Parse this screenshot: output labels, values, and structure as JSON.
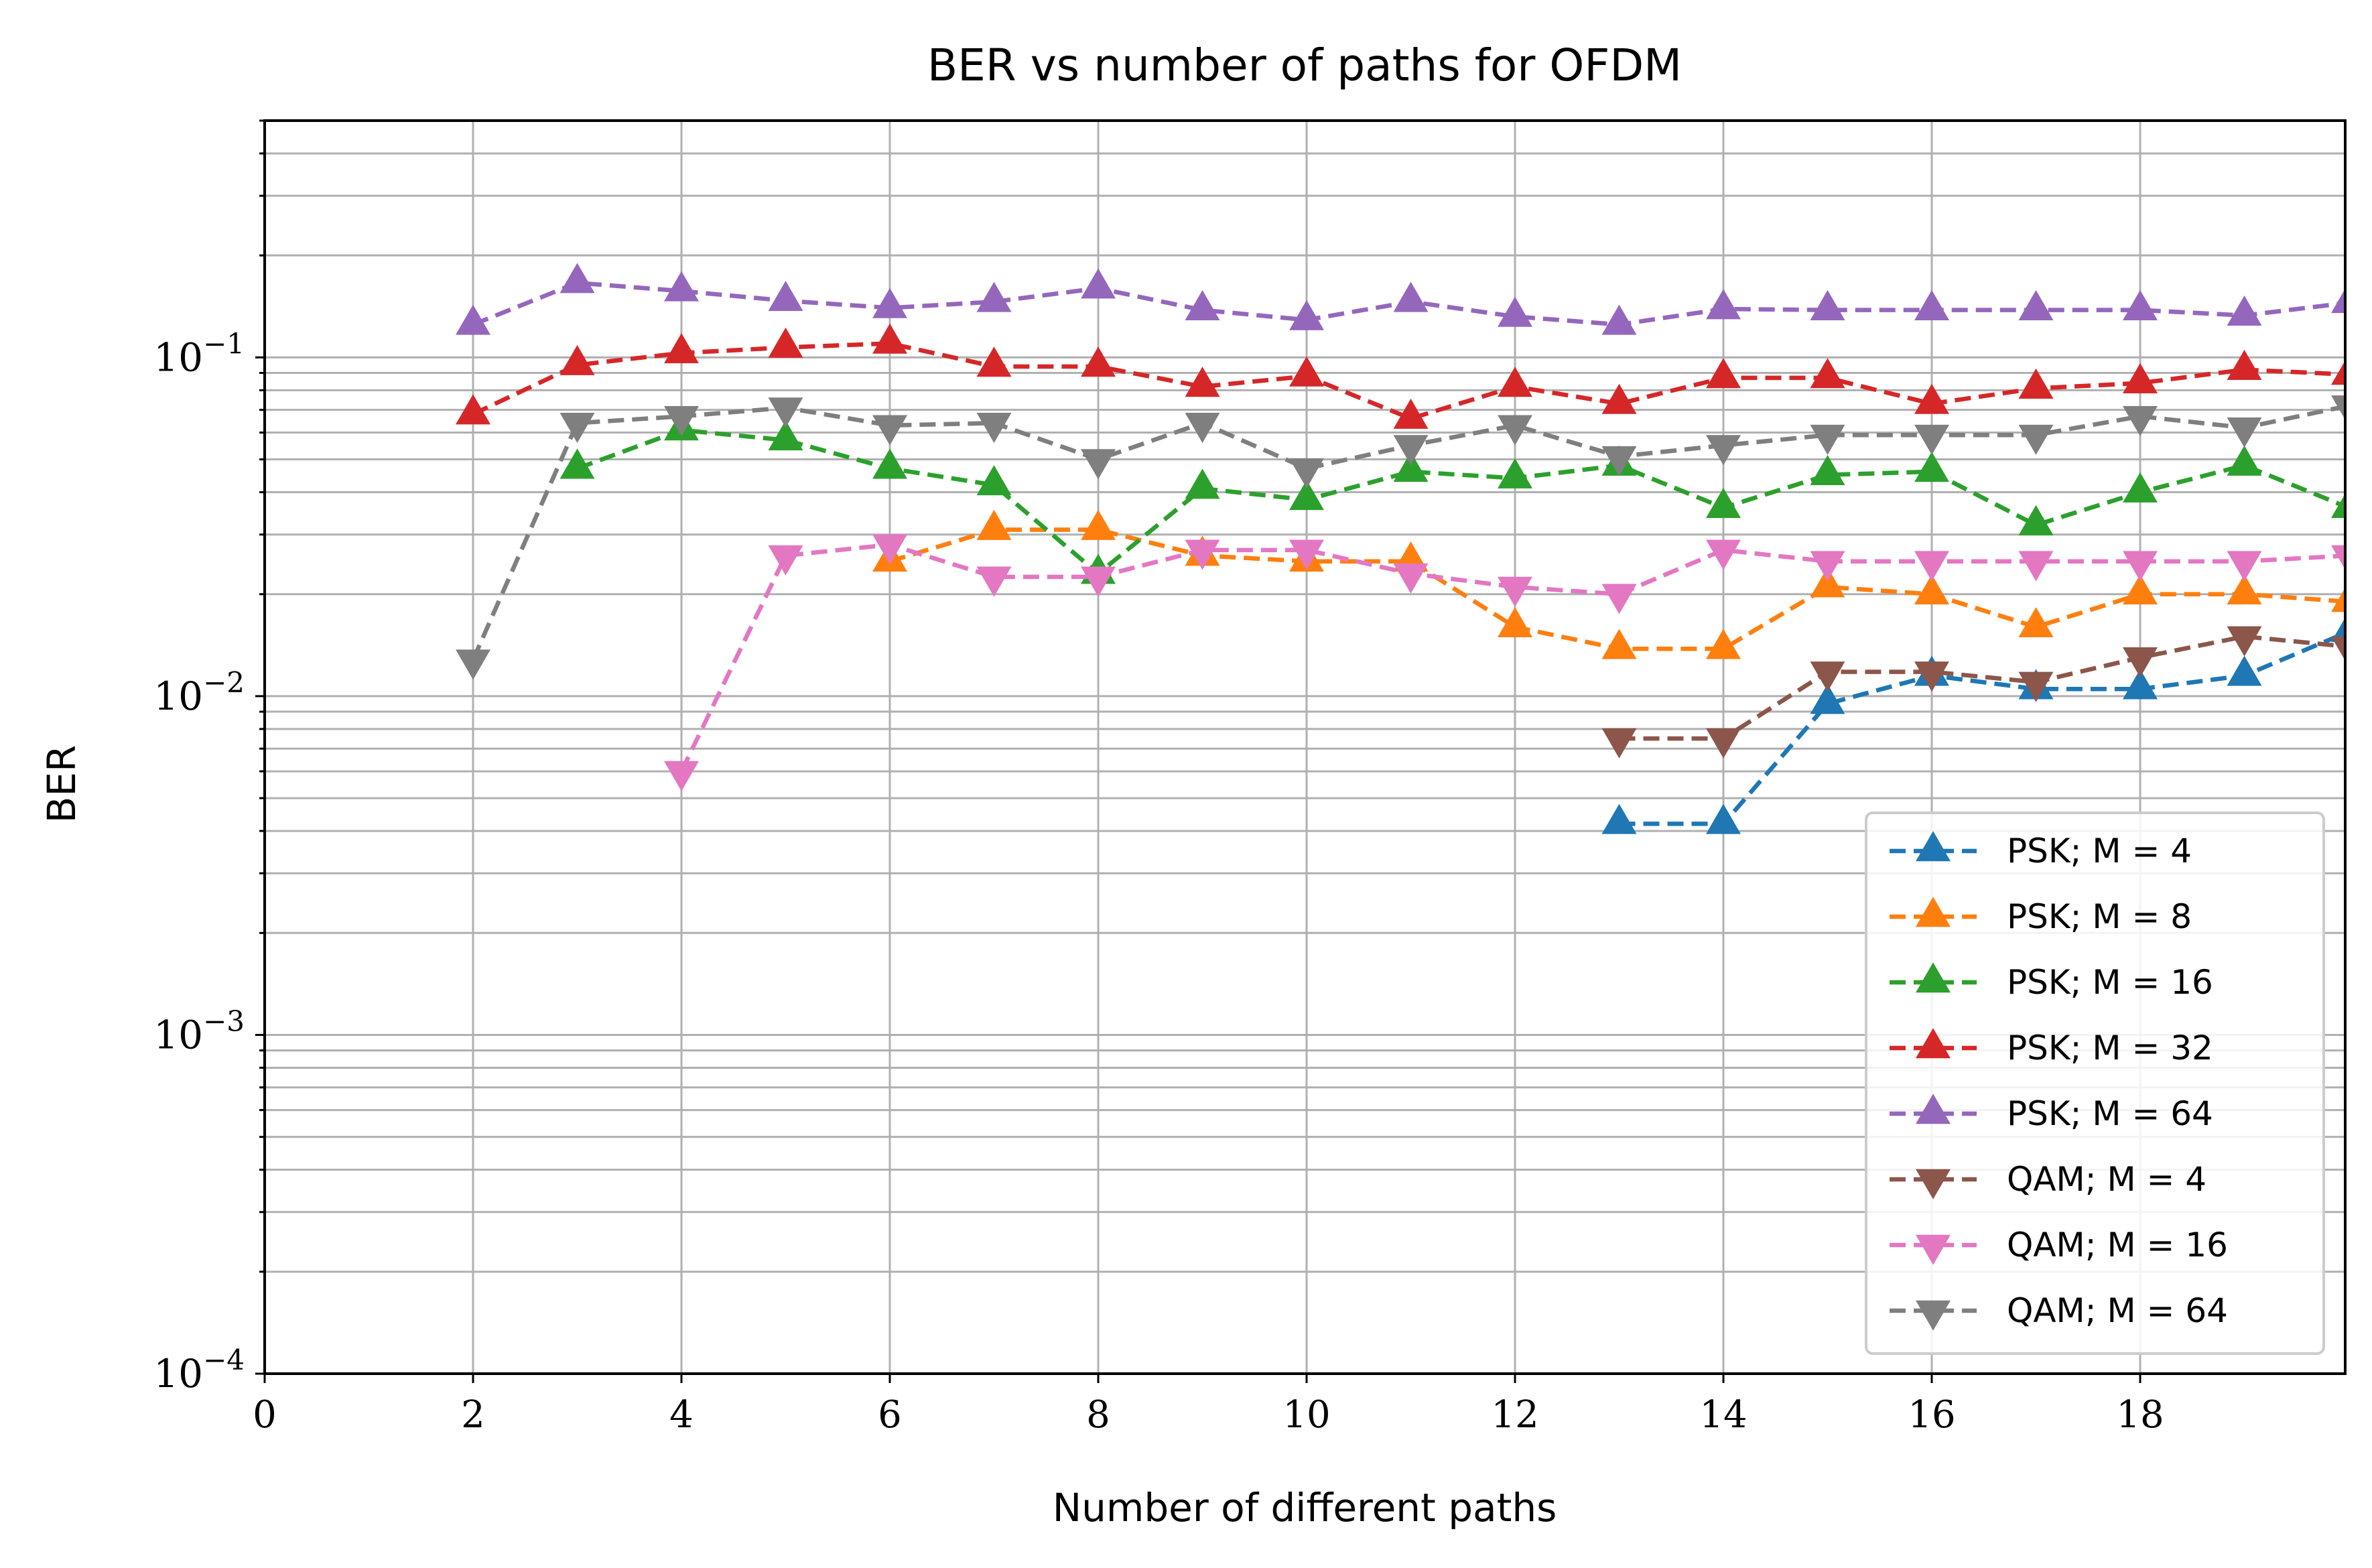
{
  "chart_data": {
    "type": "line",
    "title": "BER vs number of paths for OFDM",
    "xlabel": "Number of different paths",
    "ylabel": "BER",
    "xlim": [
      0,
      20
    ],
    "ylim": [
      0.0001,
      0.5
    ],
    "yscale": "log",
    "grid": "major and minor (y)",
    "legend_position": "lower right",
    "x_ticks": [
      "0",
      "2",
      "4",
      "6",
      "8",
      "10",
      "12",
      "14",
      "16",
      "18"
    ],
    "y_ticks": [
      {
        "value": 0.0001,
        "base": "10",
        "exp": "−4"
      },
      {
        "value": 0.001,
        "base": "10",
        "exp": "−3"
      },
      {
        "value": 0.01,
        "base": "10",
        "exp": "−2"
      },
      {
        "value": 0.1,
        "base": "10",
        "exp": "−1"
      }
    ],
    "series": [
      {
        "name": "PSK; M = 4",
        "color": "#1f77b4",
        "marker": "triangle-up",
        "x": [
          13,
          14,
          15,
          16,
          17,
          18,
          19,
          20
        ],
        "y": [
          0.0042,
          0.0042,
          0.0095,
          0.0115,
          0.0105,
          0.0105,
          0.0115,
          0.0155
        ]
      },
      {
        "name": "PSK; M = 8",
        "color": "#ff7f0e",
        "marker": "triangle-up",
        "x": [
          6,
          7,
          8,
          9,
          10,
          11,
          12,
          13,
          14,
          15,
          16,
          17,
          18,
          19,
          20
        ],
        "y": [
          0.025,
          0.031,
          0.031,
          0.026,
          0.025,
          0.025,
          0.016,
          0.0138,
          0.0138,
          0.021,
          0.02,
          0.016,
          0.02,
          0.02,
          0.019
        ]
      },
      {
        "name": "PSK; M = 16",
        "color": "#2ca02c",
        "marker": "triangle-up",
        "x": [
          3,
          4,
          5,
          6,
          7,
          8,
          9,
          10,
          11,
          12,
          13,
          14,
          15,
          16,
          17,
          18,
          19,
          20
        ],
        "y": [
          0.047,
          0.061,
          0.057,
          0.047,
          0.042,
          0.023,
          0.041,
          0.038,
          0.046,
          0.044,
          0.048,
          0.036,
          0.045,
          0.046,
          0.032,
          0.04,
          0.048,
          0.036
        ]
      },
      {
        "name": "PSK; M = 32",
        "color": "#d62728",
        "marker": "triangle-up",
        "x": [
          2,
          3,
          4,
          5,
          6,
          7,
          8,
          9,
          10,
          11,
          12,
          13,
          14,
          15,
          16,
          17,
          18,
          19,
          20
        ],
        "y": [
          0.068,
          0.095,
          0.103,
          0.107,
          0.11,
          0.094,
          0.094,
          0.082,
          0.088,
          0.066,
          0.082,
          0.073,
          0.087,
          0.087,
          0.073,
          0.081,
          0.084,
          0.092,
          0.089
        ]
      },
      {
        "name": "PSK; M = 64",
        "color": "#9467bd",
        "marker": "triangle-up",
        "x": [
          2,
          3,
          4,
          5,
          6,
          7,
          8,
          9,
          10,
          11,
          12,
          13,
          14,
          15,
          16,
          17,
          18,
          19,
          20
        ],
        "y": [
          0.125,
          0.166,
          0.157,
          0.147,
          0.14,
          0.146,
          0.16,
          0.138,
          0.129,
          0.146,
          0.132,
          0.125,
          0.139,
          0.138,
          0.138,
          0.138,
          0.138,
          0.133,
          0.145
        ]
      },
      {
        "name": "QAM; M = 4",
        "color": "#8c564b",
        "marker": "triangle-down",
        "x": [
          13,
          14,
          15,
          16,
          17,
          18,
          19,
          20
        ],
        "y": [
          0.0075,
          0.0075,
          0.0118,
          0.0118,
          0.011,
          0.013,
          0.015,
          0.014
        ]
      },
      {
        "name": "QAM; M = 16",
        "color": "#e377c2",
        "marker": "triangle-down",
        "x": [
          4,
          5,
          6,
          7,
          8,
          9,
          10,
          11,
          12,
          13,
          14,
          15,
          16,
          17,
          18,
          19,
          20
        ],
        "y": [
          0.006,
          0.026,
          0.028,
          0.0225,
          0.0225,
          0.027,
          0.027,
          0.023,
          0.021,
          0.02,
          0.027,
          0.025,
          0.025,
          0.025,
          0.025,
          0.025,
          0.026
        ]
      },
      {
        "name": "QAM; M = 64",
        "color": "#7f7f7f",
        "marker": "triangle-down",
        "x": [
          2,
          3,
          4,
          5,
          6,
          7,
          8,
          9,
          10,
          11,
          12,
          13,
          14,
          15,
          16,
          17,
          18,
          19,
          20
        ],
        "y": [
          0.0128,
          0.064,
          0.067,
          0.071,
          0.063,
          0.064,
          0.05,
          0.064,
          0.047,
          0.055,
          0.063,
          0.051,
          0.055,
          0.059,
          0.059,
          0.059,
          0.067,
          0.062,
          0.072
        ]
      }
    ]
  }
}
